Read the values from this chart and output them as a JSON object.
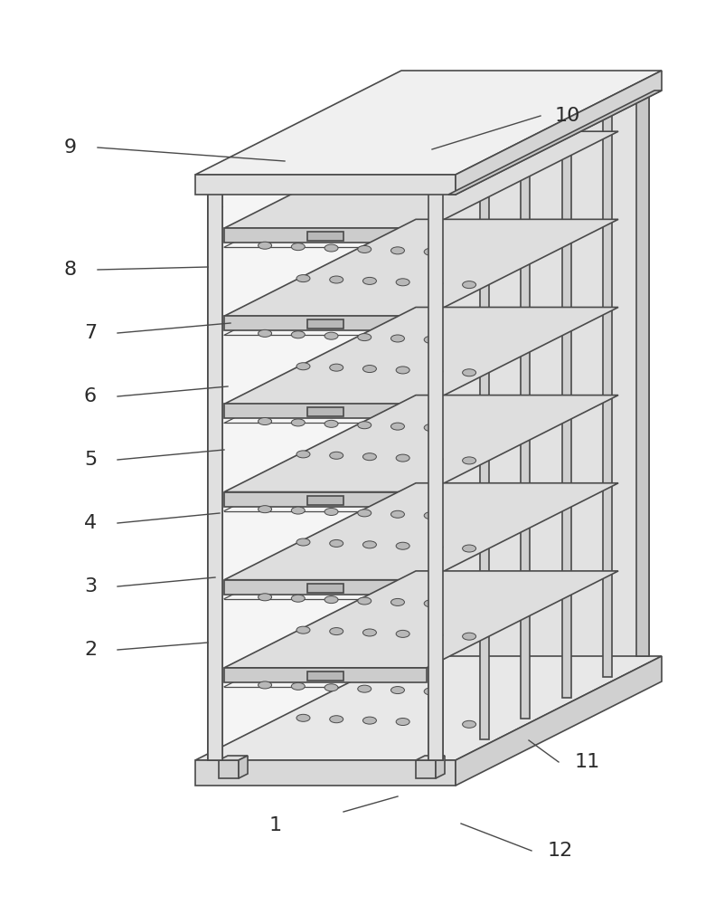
{
  "figure_width": 7.91,
  "figure_height": 10.0,
  "dpi": 100,
  "bg_color": "#ffffff",
  "line_color": "#4a4a4a",
  "line_width": 1.2,
  "label_fontsize": 16,
  "label_color": "#2a2a2a",
  "annotations": [
    [
      "1",
      305,
      912,
      380,
      897,
      440,
      880
    ],
    [
      "2",
      100,
      718,
      130,
      718,
      230,
      710
    ],
    [
      "3",
      100,
      648,
      130,
      648,
      238,
      638
    ],
    [
      "4",
      100,
      578,
      130,
      578,
      243,
      567
    ],
    [
      "5",
      100,
      508,
      130,
      508,
      248,
      497
    ],
    [
      "6",
      100,
      438,
      130,
      438,
      252,
      427
    ],
    [
      "7",
      100,
      368,
      130,
      368,
      255,
      357
    ],
    [
      "8",
      78,
      298,
      108,
      298,
      230,
      295
    ],
    [
      "9",
      78,
      163,
      108,
      163,
      315,
      178
    ],
    [
      "10",
      628,
      128,
      598,
      128,
      478,
      165
    ],
    [
      "11",
      650,
      842,
      618,
      842,
      585,
      818
    ],
    [
      "12",
      620,
      940,
      588,
      940,
      510,
      910
    ]
  ]
}
